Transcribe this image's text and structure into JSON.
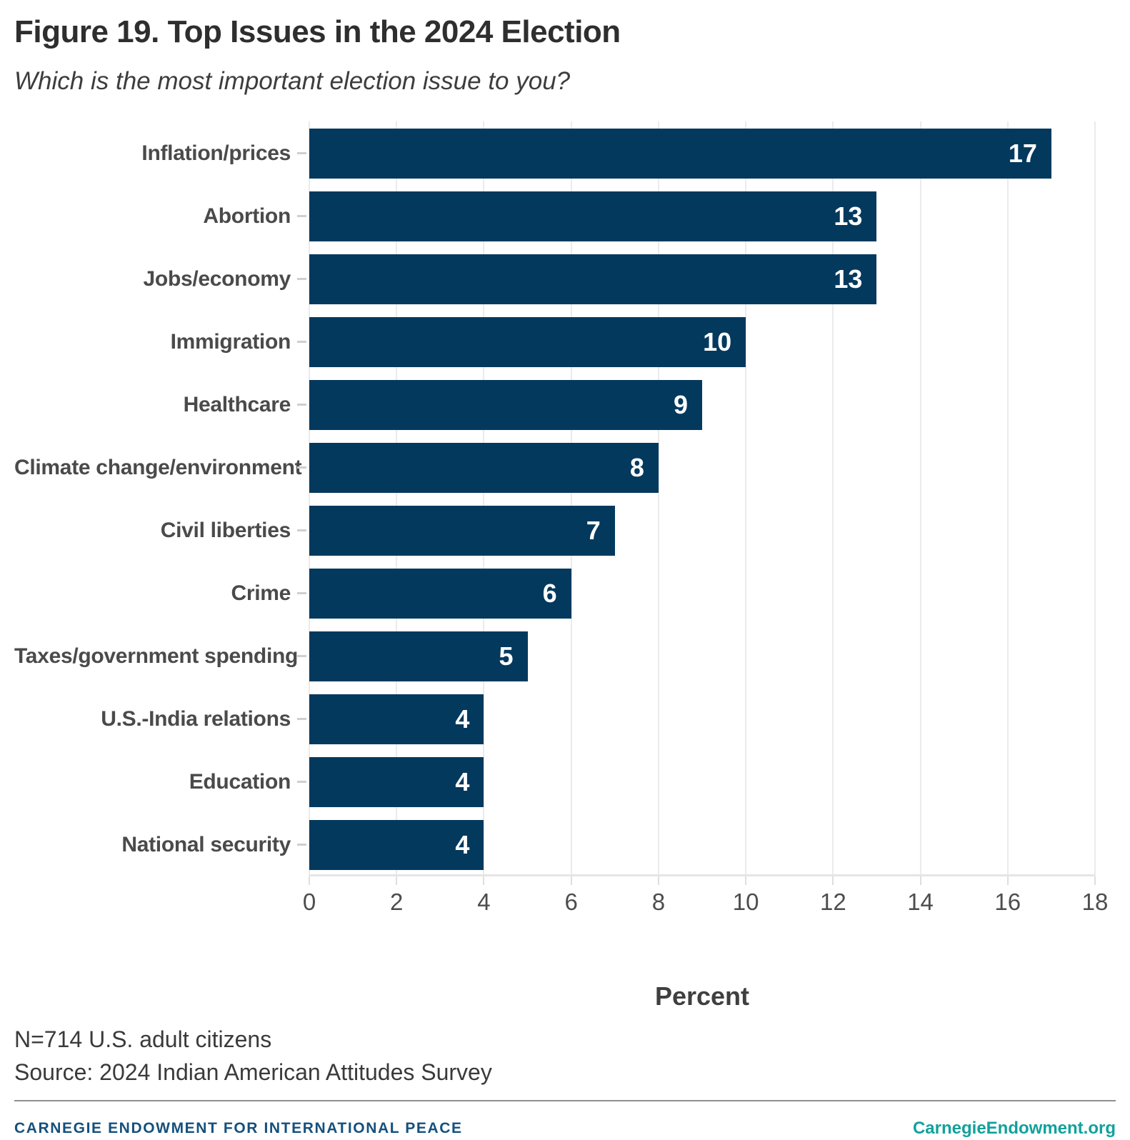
{
  "title": "Figure 19. Top Issues in the 2024 Election",
  "subtitle": "Which is the most important election issue to you?",
  "chart_data": {
    "type": "bar",
    "orientation": "horizontal",
    "categories": [
      "Inflation/prices",
      "Abortion",
      "Jobs/economy",
      "Immigration",
      "Healthcare",
      "Climate change/environment",
      "Civil liberties",
      "Crime",
      "Taxes/government spending",
      "U.S.-India relations",
      "Education",
      "National security"
    ],
    "values": [
      17,
      13,
      13,
      10,
      9,
      8,
      7,
      6,
      5,
      4,
      4,
      4
    ],
    "xlabel": "Percent",
    "xlim": [
      0,
      18
    ],
    "xticks": [
      0,
      2,
      4,
      6,
      8,
      10,
      12,
      14,
      16,
      18
    ],
    "grid": "vertical-light",
    "legend": "none",
    "bar_color": "#04395E",
    "value_label_color": "#FFFFFF"
  },
  "notes": {
    "sample": "N=714 U.S. adult citizens",
    "source": "Source: 2024 Indian American Attitudes Survey"
  },
  "footer": {
    "org": "CARNEGIE ENDOWMENT FOR INTERNATIONAL PEACE",
    "site": "CarnegieEndowment.org",
    "org_color": "#15507D",
    "site_color": "#12A19C"
  }
}
